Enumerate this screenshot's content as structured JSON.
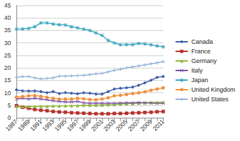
{
  "chart_data": {
    "type": "line",
    "categories": [
      "1987",
      null,
      "1989",
      null,
      "1991",
      null,
      "1993",
      null,
      "1995",
      null,
      "1997",
      null,
      "1999",
      null,
      "2001",
      null,
      "2003",
      null,
      "2005",
      null,
      "2007",
      null,
      "2009",
      null,
      "2011"
    ],
    "ylim": [
      0,
      45
    ],
    "yticks": [
      0,
      5,
      10,
      15,
      20,
      25,
      30,
      35,
      40,
      45
    ],
    "grid": true,
    "legend": "right",
    "series": [
      {
        "name": "Canada",
        "color": "#3c5da8",
        "marker": "diamond",
        "values": [
          11.2,
          10.8,
          10.7,
          10.8,
          10.5,
          10.0,
          10.5,
          9.7,
          10.1,
          9.8,
          9.6,
          10.0,
          9.8,
          9.5,
          9.5,
          10.5,
          11.5,
          11.8,
          12.0,
          12.3,
          13.0,
          14.0,
          15.0,
          16.2,
          16.5
        ]
      },
      {
        "name": "France",
        "color": "#b5322e",
        "marker": "square",
        "values": [
          4.8,
          4.2,
          3.8,
          3.3,
          3.0,
          2.8,
          2.5,
          2.3,
          2.2,
          2.0,
          1.9,
          1.8,
          1.7,
          1.6,
          1.6,
          1.6,
          1.7,
          1.7,
          1.8,
          1.9,
          2.0,
          2.1,
          2.2,
          2.4,
          2.5
        ]
      },
      {
        "name": "Germany",
        "color": "#8fb83f",
        "marker": "triangle",
        "values": [
          4.5,
          4.5,
          4.5,
          4.5,
          4.6,
          4.6,
          4.7,
          4.7,
          4.8,
          4.8,
          4.9,
          5.0,
          5.0,
          5.0,
          5.1,
          5.2,
          5.3,
          5.5,
          5.6,
          5.7,
          5.8,
          6.0,
          6.1,
          6.2,
          6.2
        ]
      },
      {
        "name": "Italy",
        "color": "#7a4fa3",
        "marker": "x",
        "values": [
          7.5,
          7.8,
          7.5,
          7.8,
          7.5,
          7.2,
          6.8,
          6.5,
          6.3,
          6.3,
          6.5,
          6.0,
          5.8,
          5.8,
          5.8,
          5.8,
          5.8,
          5.9,
          6.0,
          6.0,
          6.1,
          6.0,
          5.9,
          5.7,
          5.8
        ]
      },
      {
        "name": "Japan",
        "color": "#3fa9bf",
        "marker": "star",
        "values": [
          35.5,
          35.6,
          35.8,
          36.5,
          38.0,
          38.0,
          37.6,
          37.3,
          37.2,
          36.5,
          36.0,
          35.5,
          35.0,
          34.0,
          33.0,
          31.0,
          30.0,
          29.2,
          29.3,
          29.3,
          29.8,
          29.6,
          29.2,
          28.8,
          28.4
        ]
      },
      {
        "name": "United Kingdom",
        "color": "#f0913d",
        "marker": "circle",
        "values": [
          8.2,
          8.5,
          8.8,
          8.9,
          8.6,
          8.2,
          7.8,
          7.5,
          7.5,
          7.5,
          7.8,
          7.6,
          7.3,
          7.2,
          7.5,
          8.0,
          8.8,
          9.0,
          9.3,
          9.7,
          10.0,
          10.4,
          11.0,
          11.5,
          12.0
        ]
      },
      {
        "name": "United States",
        "color": "#93b1d6",
        "marker": "plus",
        "values": [
          16.2,
          16.5,
          16.5,
          16.0,
          15.6,
          15.8,
          16.0,
          16.7,
          16.7,
          16.8,
          16.9,
          17.0,
          17.3,
          17.6,
          17.8,
          18.4,
          19.0,
          19.4,
          20.0,
          20.4,
          20.8,
          21.2,
          21.6,
          22.0,
          22.5
        ]
      }
    ]
  }
}
